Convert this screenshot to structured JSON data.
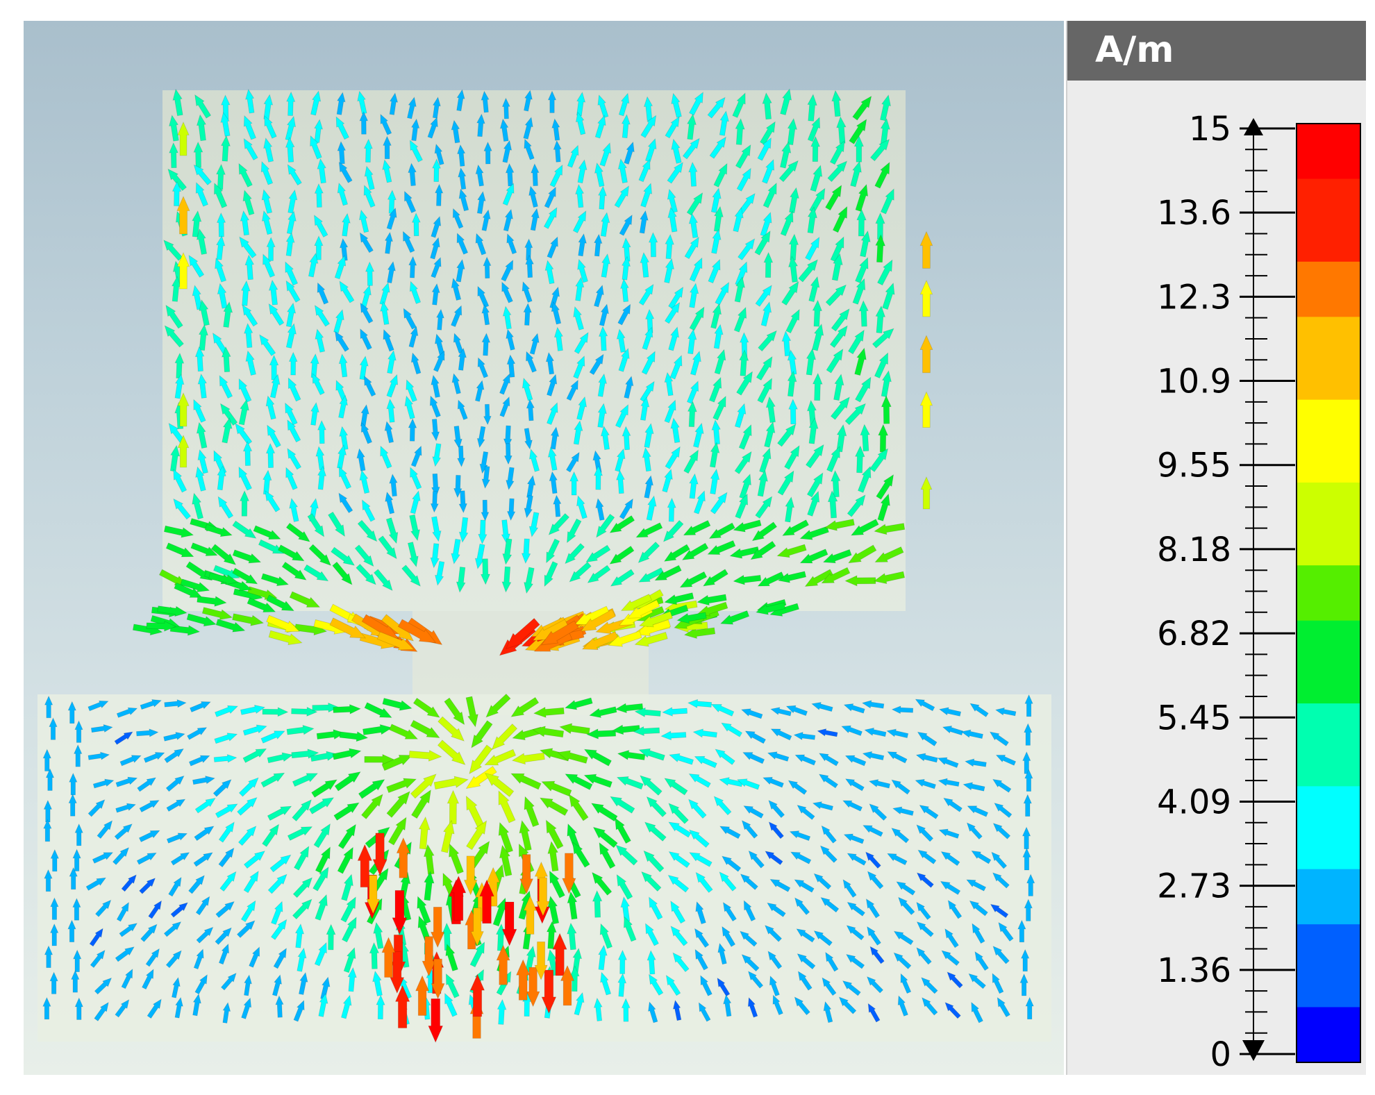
{
  "legend": {
    "unit": "A/m",
    "min": 0,
    "max": 15,
    "tick_labels": [
      "15",
      "13.6",
      "12.3",
      "10.9",
      "9.55",
      "8.18",
      "6.82",
      "5.45",
      "4.09",
      "2.73",
      "1.36",
      "0"
    ],
    "colormap": [
      "#0000ff",
      "#0060ff",
      "#00b4ff",
      "#00ffff",
      "#00ffb0",
      "#00ee30",
      "#55ee00",
      "#ccff00",
      "#ffff00",
      "#ffc000",
      "#ff7800",
      "#ff2000",
      "#ff0000"
    ]
  },
  "field": {
    "quantity": "surface current",
    "regions": [
      "upper patch",
      "lower ground plane"
    ]
  }
}
